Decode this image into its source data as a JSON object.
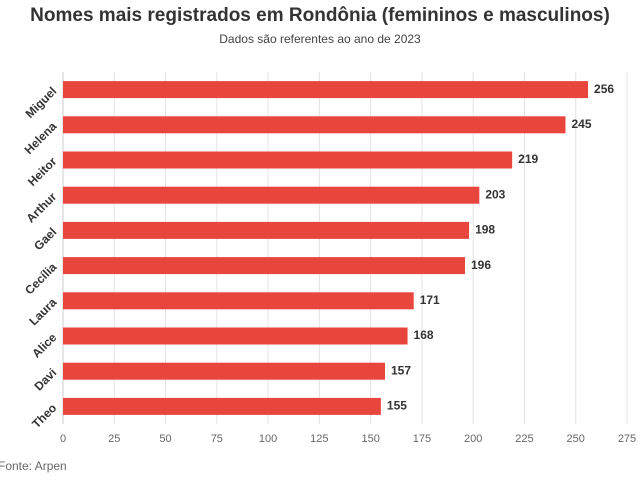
{
  "chart_data": {
    "type": "bar",
    "orientation": "horizontal",
    "title": "Nomes mais registrados em Rondônia (femininos e masculinos)",
    "subtitle": "Dados são referentes ao ano de 2023",
    "source": "Fonte: Arpen",
    "categories": [
      "Miguel",
      "Helena",
      "Heitor",
      "Arthur",
      "Gael",
      "Cecília",
      "Laura",
      "Alice",
      "Davi",
      "Theo"
    ],
    "values": [
      256,
      245,
      219,
      203,
      198,
      196,
      171,
      168,
      157,
      155
    ],
    "color": "#e8453c",
    "xlim": [
      0,
      275
    ],
    "xticks": [
      0,
      25,
      50,
      75,
      100,
      125,
      150,
      175,
      200,
      225,
      250,
      275
    ],
    "grid": true
  }
}
